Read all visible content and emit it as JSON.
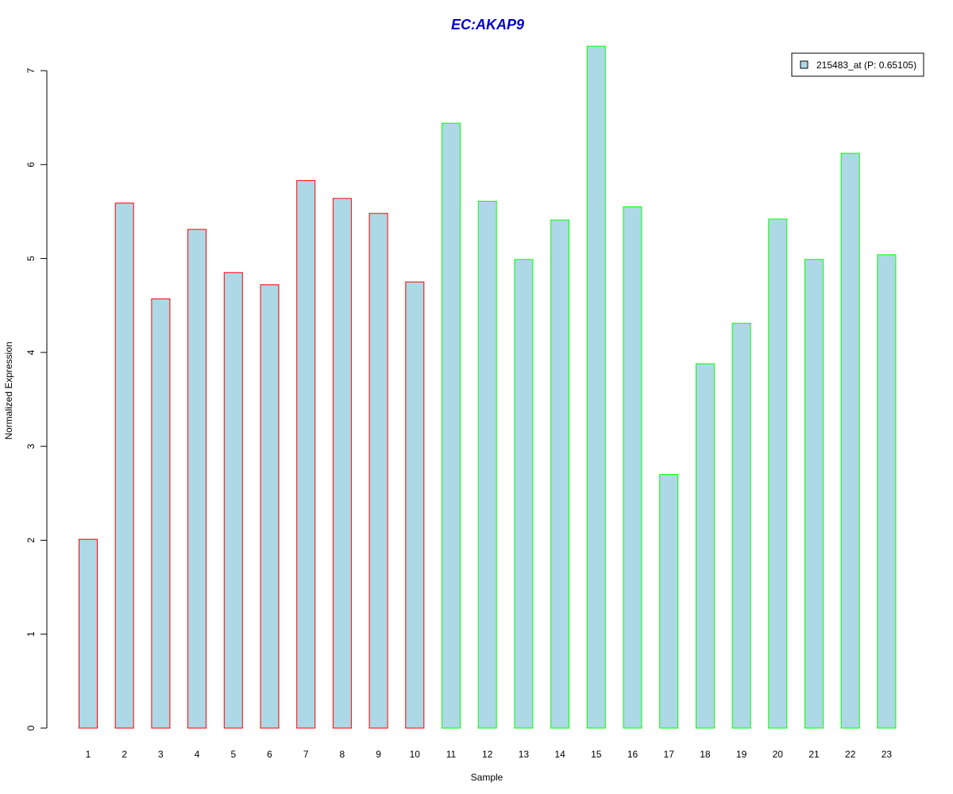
{
  "chart_data": {
    "type": "bar",
    "title": "EC:AKAP9",
    "xlabel": "Sample",
    "ylabel": "Normalized Expression",
    "categories": [
      "1",
      "2",
      "3",
      "4",
      "5",
      "6",
      "7",
      "8",
      "9",
      "10",
      "11",
      "12",
      "13",
      "14",
      "15",
      "16",
      "17",
      "18",
      "19",
      "20",
      "21",
      "22",
      "23"
    ],
    "series": [
      {
        "name": "215483_at (P: 0.65105)",
        "values": [
          2.01,
          5.59,
          4.57,
          5.31,
          4.85,
          4.72,
          5.83,
          5.64,
          5.48,
          4.75,
          6.44,
          5.61,
          4.99,
          5.41,
          7.26,
          5.55,
          2.7,
          3.88,
          4.31,
          5.42,
          4.99,
          6.12,
          5.04
        ]
      }
    ],
    "group_border_colors": [
      "#ff0000",
      "#ff0000",
      "#ff0000",
      "#ff0000",
      "#ff0000",
      "#ff0000",
      "#ff0000",
      "#ff0000",
      "#ff0000",
      "#ff0000",
      "#00ff00",
      "#00ff00",
      "#00ff00",
      "#00ff00",
      "#00ff00",
      "#00ff00",
      "#00ff00",
      "#00ff00",
      "#00ff00",
      "#00ff00",
      "#00ff00",
      "#00ff00",
      "#00ff00"
    ],
    "ylim": [
      0,
      7
    ],
    "yticks": [
      0,
      1,
      2,
      3,
      4,
      5,
      6,
      7
    ],
    "bar_fill": "#add8e6",
    "title_color": "#0000cc",
    "legend_position": "top-right",
    "grid": false
  }
}
